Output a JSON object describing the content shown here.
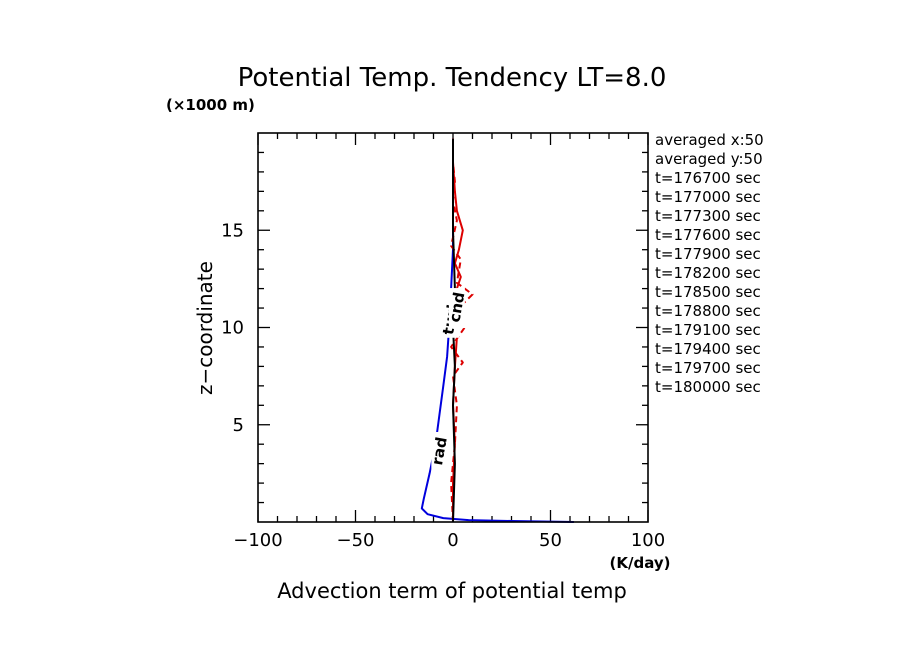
{
  "chart_data": {
    "type": "line",
    "title": "Potential Temp. Tendency LT=8.0",
    "xlabel": "Advection term of potential temp",
    "xunit": "(K/day)",
    "ylabel": "z−coordinate",
    "yunit": "(×1000 m)",
    "xlim": [
      -100,
      100
    ],
    "ylim": [
      0,
      20
    ],
    "xticks": [
      -100,
      -50,
      0,
      50,
      100
    ],
    "xtick_labels": [
      "−100",
      "−50",
      "0",
      "50",
      "100"
    ],
    "yticks": [
      5,
      10,
      15
    ],
    "ytick_labels": [
      "5",
      "10",
      "15"
    ],
    "legend_lines": [
      "averaged  x:50",
      "averaged  y:50",
      "t=176700 sec",
      "t=177000 sec",
      "t=177300 sec",
      "t=177600 sec",
      "t=177900 sec",
      "t=178200 sec",
      "t=178500 sec",
      "t=178800 sec",
      "t=179100 sec",
      "t=179400 sec",
      "t=179700 sec",
      "t=180000 sec"
    ],
    "legend_position": "right",
    "series": [
      {
        "name": "rad",
        "color": "#0000dd",
        "dash": "solid",
        "x": [
          62,
          30,
          8,
          -5,
          -13,
          -16,
          -15,
          -12,
          -9,
          -7,
          -5,
          -3,
          -2,
          -1,
          0,
          0,
          0,
          0
        ],
        "y": [
          0.0,
          0.05,
          0.1,
          0.2,
          0.4,
          0.7,
          1.2,
          2.5,
          4.0,
          5.5,
          7.0,
          8.5,
          10.0,
          12.0,
          14.0,
          16.0,
          18.0,
          19.7
        ]
      },
      {
        "name": "",
        "color": "#dd0000",
        "dash": "solid",
        "x": [
          0,
          0,
          1,
          0,
          1,
          2,
          0,
          3,
          1,
          2,
          4,
          1,
          3,
          5,
          2,
          1,
          0,
          0
        ],
        "y": [
          0.0,
          2.0,
          4.0,
          6.0,
          8.0,
          9.5,
          10.2,
          10.8,
          11.4,
          12.0,
          12.6,
          13.3,
          14.0,
          15.0,
          16.0,
          17.0,
          18.5,
          19.7
        ]
      },
      {
        "name": "",
        "color": "#dd0000",
        "dash": "dashed",
        "x": [
          0,
          -1,
          1,
          2,
          0,
          5,
          -1,
          6,
          3,
          10,
          2,
          4,
          -1,
          2,
          0,
          1,
          0,
          0
        ],
        "y": [
          0.0,
          2.0,
          4.0,
          6.0,
          7.5,
          8.2,
          9.0,
          10.0,
          11.0,
          11.7,
          12.3,
          13.5,
          14.2,
          15.5,
          16.5,
          17.5,
          18.5,
          19.7
        ]
      },
      {
        "name": "",
        "color": "#000000",
        "dash": "solid",
        "x": [
          0,
          1,
          0,
          1,
          0,
          1,
          0,
          0
        ],
        "y": [
          0.0,
          3.0,
          6.0,
          8.0,
          10.0,
          12.0,
          15.0,
          19.7
        ]
      }
    ],
    "annotations": [
      {
        "text": "rad",
        "x": -7,
        "y": 3.6,
        "color": "#0000dd"
      },
      {
        "text": "turb",
        "x": -1,
        "y": 10.5,
        "color": "#000000"
      },
      {
        "text": "cnd",
        "x": 2,
        "y": 11.0,
        "color": "#dd0000"
      }
    ]
  }
}
